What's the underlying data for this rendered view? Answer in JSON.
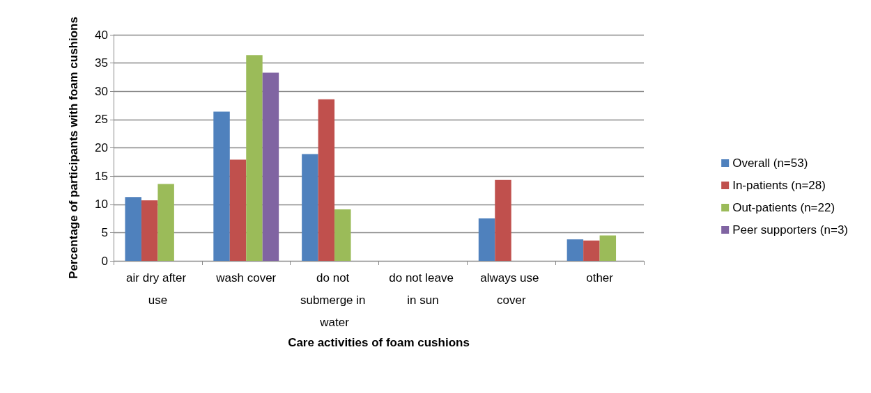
{
  "chart_data": {
    "type": "bar",
    "xlabel": "Care activities of foam cushions",
    "ylabel": "Percentage of participants with foam cushions",
    "categories": [
      "air dry after use",
      "wash cover",
      "do not submerge in water",
      "do not leave in sun",
      "always use cover",
      "other"
    ],
    "series": [
      {
        "name": "Overall (n=53)",
        "color": "#4f81bd",
        "values": [
          11.3,
          26.4,
          18.9,
          0,
          7.5,
          3.8
        ]
      },
      {
        "name": "In-patients (n=28)",
        "color": "#c0504d",
        "values": [
          10.7,
          17.9,
          28.6,
          0,
          14.3,
          3.6
        ]
      },
      {
        "name": "Out-patients (n=22)",
        "color": "#9bbb59",
        "values": [
          13.6,
          36.4,
          9.1,
          0,
          0,
          4.5
        ]
      },
      {
        "name": "Peer supporters (n=3)",
        "color": "#8064a2",
        "values": [
          0,
          33.3,
          0,
          0,
          0,
          0
        ]
      }
    ],
    "ylim": [
      0,
      40
    ],
    "yticks": [
      0,
      5,
      10,
      15,
      20,
      25,
      30,
      35,
      40
    ],
    "grid": "y",
    "legend": "right"
  }
}
